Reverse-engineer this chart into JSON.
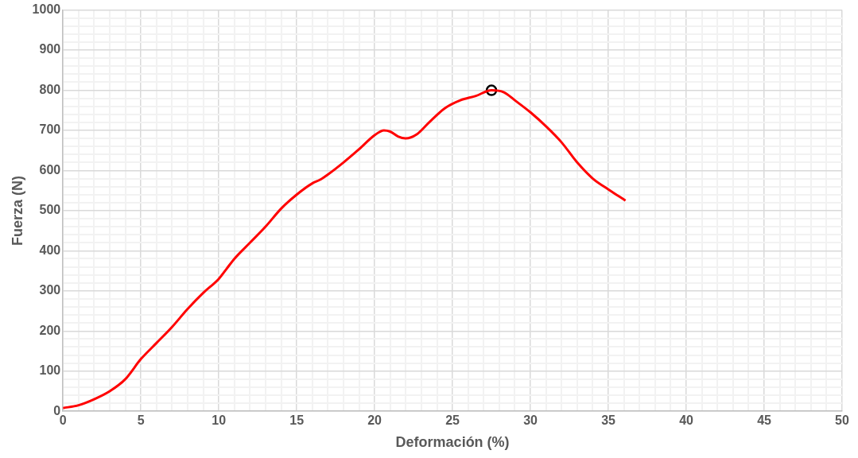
{
  "chart_data": {
    "type": "line",
    "xlabel": "Deformación (%)",
    "ylabel": "Fuerza (N)",
    "xlim": [
      0,
      50
    ],
    "ylim": [
      0,
      1000
    ],
    "xticks": [
      0,
      {
        "value": 1,
        "label": null
      },
      {
        "value": 2,
        "label": null
      },
      {
        "value": 3,
        "label": null
      },
      {
        "value": 4,
        "label": null
      },
      5,
      {
        "value": 6,
        "label": null
      },
      {
        "value": 7,
        "label": null
      },
      {
        "value": 8,
        "label": null
      },
      {
        "value": 9,
        "label": null
      },
      10,
      {
        "value": 11,
        "label": null
      },
      {
        "value": 12,
        "label": null
      },
      {
        "value": 13,
        "label": null
      },
      {
        "value": 14,
        "label": null
      },
      15,
      {
        "value": 16,
        "label": null
      },
      {
        "value": 17,
        "label": null
      },
      {
        "value": 18,
        "label": null
      },
      {
        "value": 19,
        "label": null
      },
      20,
      {
        "value": 21,
        "label": null
      },
      {
        "value": 22,
        "label": null
      },
      {
        "value": 23,
        "label": null
      },
      {
        "value": 24,
        "label": null
      },
      25,
      {
        "value": 26,
        "label": null
      },
      {
        "value": 27,
        "label": null
      },
      {
        "value": 28,
        "label": null
      },
      {
        "value": 29,
        "label": null
      },
      30,
      {
        "value": 31,
        "label": null
      },
      {
        "value": 32,
        "label": null
      },
      {
        "value": 33,
        "label": null
      },
      {
        "value": 34,
        "label": null
      },
      35,
      {
        "value": 36,
        "label": null
      },
      {
        "value": 37,
        "label": null
      },
      {
        "value": 38,
        "label": null
      },
      {
        "value": 39,
        "label": null
      },
      40,
      {
        "value": 41,
        "label": null
      },
      {
        "value": 42,
        "label": null
      },
      {
        "value": 43,
        "label": null
      },
      {
        "value": 44,
        "label": null
      },
      45,
      {
        "value": 46,
        "label": null
      },
      {
        "value": 47,
        "label": null
      },
      {
        "value": 48,
        "label": null
      },
      {
        "value": 49,
        "label": null
      },
      50
    ],
    "yticks": [
      0,
      {
        "value": 20,
        "label": null
      },
      {
        "value": 40,
        "label": null
      },
      {
        "value": 60,
        "label": null
      },
      {
        "value": 80,
        "label": null
      },
      100,
      {
        "value": 120,
        "label": null
      },
      {
        "value": 140,
        "label": null
      },
      {
        "value": 160,
        "label": null
      },
      {
        "value": 180,
        "label": null
      },
      200,
      {
        "value": 220,
        "label": null
      },
      {
        "value": 240,
        "label": null
      },
      {
        "value": 260,
        "label": null
      },
      {
        "value": 280,
        "label": null
      },
      300,
      {
        "value": 320,
        "label": null
      },
      {
        "value": 340,
        "label": null
      },
      {
        "value": 360,
        "label": null
      },
      {
        "value": 380,
        "label": null
      },
      400,
      {
        "value": 420,
        "label": null
      },
      {
        "value": 440,
        "label": null
      },
      {
        "value": 460,
        "label": null
      },
      {
        "value": 480,
        "label": null
      },
      500,
      {
        "value": 520,
        "label": null
      },
      {
        "value": 540,
        "label": null
      },
      {
        "value": 560,
        "label": null
      },
      {
        "value": 580,
        "label": null
      },
      600,
      {
        "value": 620,
        "label": null
      },
      {
        "value": 640,
        "label": null
      },
      {
        "value": 660,
        "label": null
      },
      {
        "value": 680,
        "label": null
      },
      700,
      {
        "value": 720,
        "label": null
      },
      {
        "value": 740,
        "label": null
      },
      {
        "value": 760,
        "label": null
      },
      {
        "value": 780,
        "label": null
      },
      800,
      {
        "value": 820,
        "label": null
      },
      {
        "value": 840,
        "label": null
      },
      {
        "value": 860,
        "label": null
      },
      {
        "value": 880,
        "label": null
      },
      900,
      {
        "value": 920,
        "label": null
      },
      {
        "value": 940,
        "label": null
      },
      {
        "value": 960,
        "label": null
      },
      {
        "value": 980,
        "label": null
      },
      1000
    ],
    "grid": true,
    "legend": false,
    "marker": "none",
    "line_style": "solid",
    "series": [
      {
        "color": "#ff0000",
        "x": [
          0,
          1,
          2,
          3,
          4,
          5,
          6,
          7,
          8,
          9,
          10,
          10.5,
          11,
          12,
          13,
          14,
          15,
          16,
          16.5,
          17,
          18,
          19,
          20,
          20.6,
          21,
          21.5,
          22,
          22.7,
          23.5,
          24.5,
          25.5,
          26.5,
          27.5,
          28.3,
          29,
          30,
          31,
          32,
          33,
          34,
          35,
          36.1
        ],
        "values": [
          8,
          15,
          30,
          50,
          80,
          130,
          170,
          210,
          255,
          295,
          330,
          355,
          380,
          420,
          460,
          505,
          540,
          568,
          577,
          590,
          620,
          653,
          688,
          700,
          697,
          685,
          680,
          690,
          720,
          755,
          775,
          786,
          800,
          795,
          775,
          745,
          710,
          670,
          620,
          580,
          553,
          525
        ]
      },
      {
        "type": "scatter",
        "color": "#000000",
        "marker": "circle",
        "x": [
          27.5
        ],
        "values": [
          800
        ]
      }
    ]
  }
}
